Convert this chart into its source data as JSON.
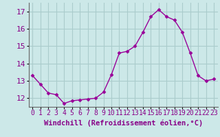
{
  "x": [
    0,
    1,
    2,
    3,
    4,
    5,
    6,
    7,
    8,
    9,
    10,
    11,
    12,
    13,
    14,
    15,
    16,
    17,
    18,
    19,
    20,
    21,
    22,
    23
  ],
  "y": [
    13.3,
    12.8,
    12.3,
    12.2,
    11.7,
    11.85,
    11.9,
    11.95,
    12.0,
    12.35,
    13.35,
    14.6,
    14.7,
    15.0,
    15.8,
    16.7,
    17.1,
    16.7,
    16.5,
    15.8,
    14.6,
    13.3,
    13.0,
    13.1
  ],
  "line_color": "#990099",
  "marker": "D",
  "marker_size": 2.5,
  "background_color": "#cce8e8",
  "grid_color": "#aacccc",
  "xlabel": "Windchill (Refroidissement éolien,°C)",
  "xlabel_fontsize": 7.5,
  "tick_label_color": "#880088",
  "tick_fontsize": 7,
  "ylim": [
    11.5,
    17.5
  ],
  "yticks": [
    12,
    13,
    14,
    15,
    16,
    17
  ],
  "xticks": [
    0,
    1,
    2,
    3,
    4,
    5,
    6,
    7,
    8,
    9,
    10,
    11,
    12,
    13,
    14,
    15,
    16,
    17,
    18,
    19,
    20,
    21,
    22,
    23
  ]
}
